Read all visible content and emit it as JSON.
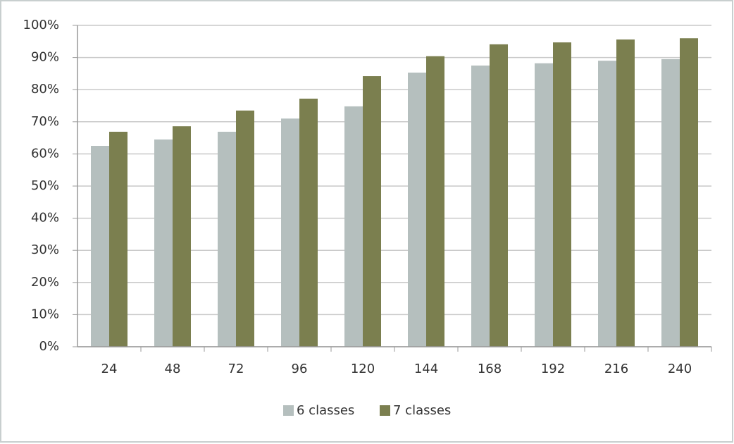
{
  "chart_data": {
    "type": "bar",
    "categories": [
      "24",
      "48",
      "72",
      "96",
      "120",
      "144",
      "168",
      "192",
      "216",
      "240"
    ],
    "series": [
      {
        "name": "6 classes",
        "color": "#b5bfbe",
        "values": [
          62.5,
          64.5,
          66.9,
          71,
          74.8,
          85.3,
          87.5,
          88.2,
          89,
          89.5
        ]
      },
      {
        "name": "7 classes",
        "color": "#7b7f4f",
        "values": [
          66.9,
          68.6,
          73.5,
          77.2,
          84.2,
          90.4,
          94.1,
          94.7,
          95.6,
          96
        ]
      }
    ],
    "ylim": [
      0,
      100
    ],
    "yticks": [
      {
        "value": 0,
        "label": "0%"
      },
      {
        "value": 10,
        "label": "10%"
      },
      {
        "value": 20,
        "label": "20%"
      },
      {
        "value": 30,
        "label": "30%"
      },
      {
        "value": 40,
        "label": "40%"
      },
      {
        "value": 50,
        "label": "50%"
      },
      {
        "value": 60,
        "label": "60%"
      },
      {
        "value": 70,
        "label": "70%"
      },
      {
        "value": 80,
        "label": "80%"
      },
      {
        "value": 90,
        "label": "90%"
      },
      {
        "value": 100,
        "label": "100%"
      }
    ],
    "grid": true,
    "legend": "bottom"
  }
}
